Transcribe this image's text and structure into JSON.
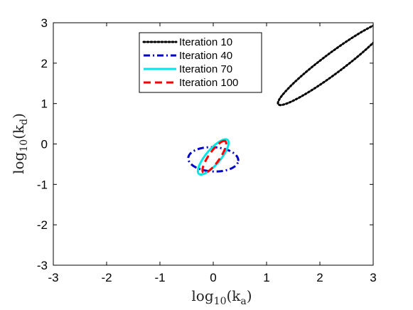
{
  "chart_data": {
    "type": "line",
    "title": "",
    "xlabel": {
      "base": "log",
      "base_sub": "10",
      "open": "(k",
      "sub": "a",
      "close": ")"
    },
    "ylabel": {
      "base": "log",
      "base_sub": "10",
      "open": "(k",
      "sub": "d",
      "close": ")"
    },
    "xlim": [
      -3,
      3
    ],
    "ylim": [
      -3,
      3
    ],
    "xticks": [
      -3,
      -2,
      -1,
      0,
      1,
      2,
      3
    ],
    "yticks": [
      -3,
      -2,
      -1,
      0,
      1,
      2,
      3
    ],
    "xtick_labels": [
      "-3",
      "-2",
      "-1",
      "0",
      "1",
      "2",
      "3"
    ],
    "ytick_labels": [
      "-3",
      "-2",
      "-1",
      "0",
      "1",
      "2",
      "3"
    ],
    "grid": false,
    "legend_position": "top-center",
    "series": [
      {
        "name": "Iteration 10",
        "color": "#000000",
        "style": "dotted",
        "ellipse": {
          "center": [
            2.25,
            2.0
          ],
          "semi_major": 1.45,
          "semi_minor": 0.22,
          "angle_deg": 45
        }
      },
      {
        "name": "Iteration 40",
        "color": "#0000cc",
        "style": "dashdot",
        "ellipse": {
          "center": [
            0.0,
            -0.38
          ],
          "semi_major": 0.47,
          "semi_minor": 0.3,
          "angle_deg": -5
        }
      },
      {
        "name": "Iteration 70",
        "color": "#00e5e5",
        "style": "solid",
        "ellipse": {
          "center": [
            0.0,
            -0.32
          ],
          "semi_major": 0.5,
          "semi_minor": 0.15,
          "angle_deg": 59
        }
      },
      {
        "name": "Iteration 100",
        "color": "#ff0000",
        "style": "dashed",
        "ellipse": {
          "center": [
            0.02,
            -0.32
          ],
          "semi_major": 0.44,
          "semi_minor": 0.11,
          "angle_deg": 63
        }
      }
    ]
  }
}
